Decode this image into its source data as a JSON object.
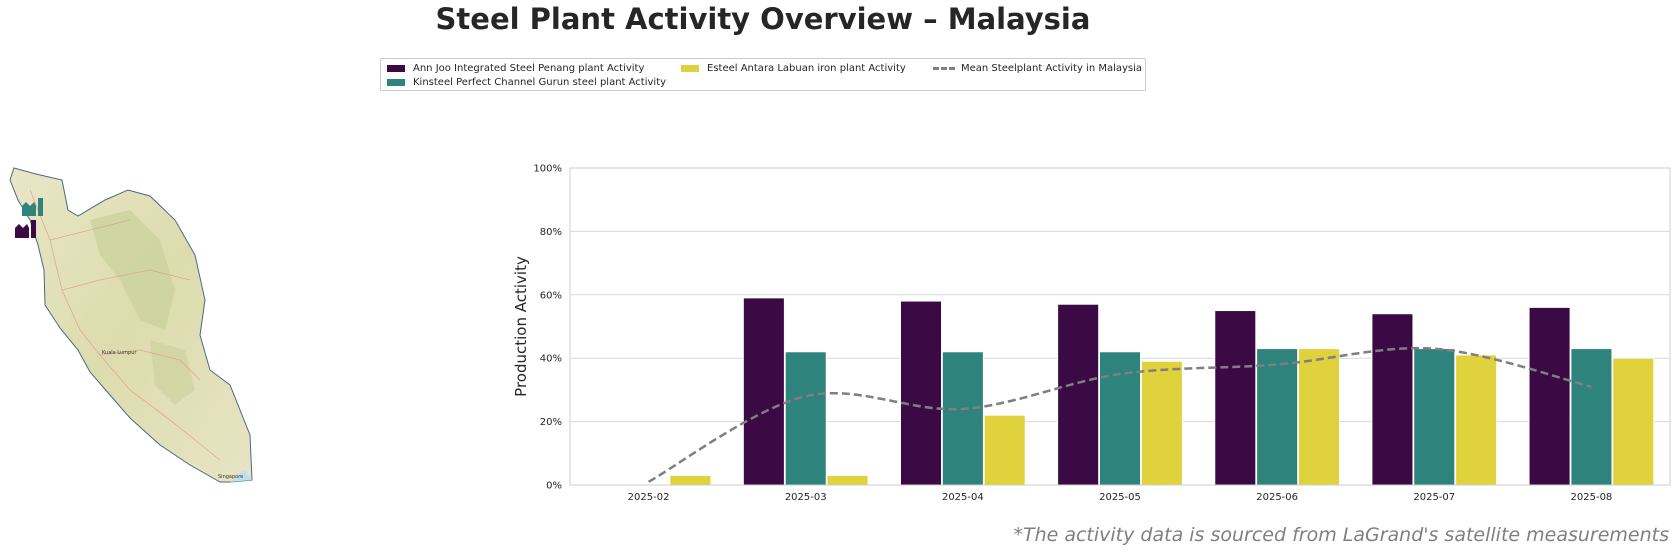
{
  "title": "Steel Plant Activity Overview – Malaysia",
  "source_note": "*The activity data is sourced from LaGrand's satellite measurements",
  "legend": [
    {
      "label": "Ann Joo Integrated Steel Penang plant Activity",
      "color": "#3b0a45",
      "kind": "bar"
    },
    {
      "label": "Kinsteel Perfect Channel Gurun steel plant Activity",
      "color": "#2e837d",
      "kind": "bar"
    },
    {
      "label": "Esteel Antara Labuan iron plant Activity",
      "color": "#e0d23c",
      "kind": "bar"
    },
    {
      "label": "Mean Steelplant Activity in Malaysia",
      "color": "#7f7f7f",
      "kind": "line"
    }
  ],
  "map_labels": {
    "kuala_lumpur": "Kuala Lumpur",
    "singapore": "Singapore"
  },
  "chart_data": {
    "type": "bar",
    "ylabel": "Production Activity",
    "ylim": [
      0,
      100
    ],
    "yticks": [
      "0%",
      "20%",
      "40%",
      "60%",
      "80%",
      "100%"
    ],
    "categories": [
      "2025-02",
      "2025-03",
      "2025-04",
      "2025-05",
      "2025-06",
      "2025-07",
      "2025-08"
    ],
    "series": [
      {
        "name": "Ann Joo Integrated Steel Penang plant Activity",
        "color": "#3b0a45",
        "values": [
          null,
          59,
          58,
          57,
          55,
          54,
          56
        ]
      },
      {
        "name": "Kinsteel Perfect Channel Gurun steel plant Activity",
        "color": "#2e837d",
        "values": [
          null,
          42,
          42,
          42,
          43,
          43,
          43
        ]
      },
      {
        "name": "Esteel Antara Labuan iron plant Activity",
        "color": "#e0d23c",
        "values": [
          3,
          3,
          22,
          39,
          43,
          41,
          40
        ]
      }
    ],
    "mean_line": {
      "name": "Mean Steelplant Activity in Malaysia",
      "color": "#7f7f7f",
      "values": [
        1,
        28,
        24,
        35,
        38,
        43,
        31
      ]
    },
    "grid": true
  }
}
